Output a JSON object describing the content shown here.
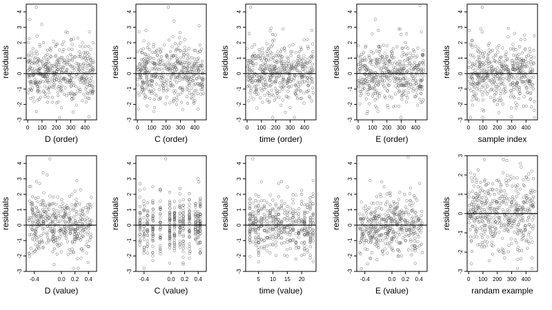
{
  "figure": {
    "rows": 2,
    "cols": 5,
    "background": "#ffffff",
    "point_color": "#555555",
    "marker": "open-circle",
    "reference_line_y": 0
  },
  "chart_data": [
    {
      "type": "scatter",
      "xlabel": "D (order)",
      "ylabel": "residuals",
      "xlim": [
        -10,
        480
      ],
      "ylim": [
        -3,
        4.5
      ],
      "xticks": [
        "0",
        "100",
        "200",
        "300",
        "400"
      ],
      "xtick_values": [
        0,
        100,
        200,
        300,
        400
      ],
      "yticks": [
        "-3",
        "-2",
        "-1",
        "0",
        "1",
        "2",
        "3",
        "4"
      ],
      "ytick_values": [
        -3,
        -2,
        -1,
        0,
        1,
        2,
        3,
        4
      ],
      "x_kind": "index",
      "n": 460,
      "points": [
        [
          16,
          3.5
        ],
        [
          60,
          4.3
        ],
        [
          265,
          2.7
        ],
        [
          350,
          2.3
        ],
        [
          430,
          2.7
        ],
        [
          455,
          2.0
        ],
        [
          428,
          -2.8
        ],
        [
          200,
          -1.9
        ],
        [
          45,
          -1.8
        ],
        [
          320,
          -1.6
        ],
        [
          110,
          2.0
        ],
        [
          180,
          2.1
        ]
      ]
    },
    {
      "type": "scatter",
      "xlabel": "C (order)",
      "ylabel": "residuals",
      "xlim": [
        -10,
        480
      ],
      "ylim": [
        -3,
        4.5
      ],
      "xticks": [
        "0",
        "100",
        "200",
        "300",
        "400"
      ],
      "xtick_values": [
        0,
        100,
        200,
        300,
        400
      ],
      "yticks": [
        "-3",
        "-2",
        "-1",
        "0",
        "1",
        "2",
        "3",
        "4"
      ],
      "ytick_values": [
        -3,
        -2,
        -1,
        0,
        1,
        2,
        3,
        4
      ],
      "x_kind": "index",
      "n": 460,
      "points": [
        [
          215,
          4.3
        ],
        [
          255,
          3.4
        ],
        [
          60,
          2.8
        ],
        [
          430,
          3.1
        ],
        [
          8,
          -2.3
        ],
        [
          120,
          -2.2
        ],
        [
          420,
          -1.3
        ],
        [
          300,
          2.0
        ],
        [
          330,
          2.2
        ]
      ]
    },
    {
      "type": "scatter",
      "xlabel": "time (order)",
      "ylabel": "residuals",
      "xlim": [
        -10,
        480
      ],
      "ylim": [
        -3,
        4.5
      ],
      "xticks": [
        "0",
        "100",
        "200",
        "300",
        "400"
      ],
      "xtick_values": [
        0,
        100,
        200,
        300,
        400
      ],
      "yticks": [
        "-3",
        "-2",
        "-1",
        "0",
        "1",
        "2",
        "3",
        "4"
      ],
      "ytick_values": [
        -3,
        -2,
        -1,
        0,
        1,
        2,
        3,
        4
      ],
      "x_kind": "index",
      "n": 460,
      "points": [
        [
          25,
          4.3
        ],
        [
          15,
          2.6
        ],
        [
          250,
          2.9
        ],
        [
          450,
          2.8
        ],
        [
          300,
          -2.2
        ],
        [
          140,
          -1.7
        ],
        [
          380,
          -1.6
        ]
      ]
    },
    {
      "type": "scatter",
      "xlabel": "E (order)",
      "ylabel": "residuals",
      "xlim": [
        -10,
        480
      ],
      "ylim": [
        -3,
        4.5
      ],
      "xticks": [
        "0",
        "100",
        "200",
        "300",
        "400"
      ],
      "xtick_values": [
        0,
        100,
        200,
        300,
        400
      ],
      "yticks": [
        "-3",
        "-2",
        "-1",
        "0",
        "1",
        "2",
        "3",
        "4"
      ],
      "ytick_values": [
        -3,
        -2,
        -1,
        0,
        1,
        2,
        3,
        4
      ],
      "x_kind": "index",
      "n": 460,
      "points": [
        [
          430,
          4.4
        ],
        [
          120,
          3.5
        ],
        [
          140,
          2.8
        ],
        [
          440,
          2.7
        ],
        [
          60,
          -2.6
        ],
        [
          260,
          -2.1
        ],
        [
          400,
          -1.5
        ]
      ]
    },
    {
      "type": "scatter",
      "xlabel": "sample index",
      "ylabel": "residuals",
      "xlim": [
        -10,
        480
      ],
      "ylim": [
        -3,
        4.5
      ],
      "xticks": [
        "0",
        "100",
        "200",
        "300",
        "400"
      ],
      "xtick_values": [
        0,
        100,
        200,
        300,
        400
      ],
      "yticks": [
        "-3",
        "-2",
        "-1",
        "0",
        "1",
        "2",
        "3",
        "4"
      ],
      "ytick_values": [
        -3,
        -2,
        -1,
        0,
        1,
        2,
        3,
        4
      ],
      "x_kind": "index",
      "n": 460,
      "points": [
        [
          95,
          4.3
        ],
        [
          5,
          2.8
        ],
        [
          320,
          2.6
        ],
        [
          390,
          2.5
        ],
        [
          300,
          -2.8
        ],
        [
          200,
          -2.0
        ],
        [
          100,
          -1.7
        ]
      ]
    },
    {
      "type": "scatter",
      "xlabel": "D (value)",
      "ylabel": "residuals",
      "xlim": [
        -0.52,
        0.52
      ],
      "ylim": [
        -3,
        4.5
      ],
      "xticks": [
        "-0.4",
        "0.0",
        "0.2",
        "0.4"
      ],
      "xtick_values": [
        -0.4,
        0.0,
        0.2,
        0.4
      ],
      "yticks": [
        "-3",
        "-2",
        "-1",
        "0",
        "1",
        "2",
        "3",
        "4"
      ],
      "ytick_values": [
        -3,
        -2,
        -1,
        0,
        1,
        2,
        3,
        4
      ],
      "x_kind": "continuous",
      "n": 420,
      "points": [
        [
          -0.17,
          4.3
        ],
        [
          -0.27,
          3.4
        ],
        [
          -0.32,
          2.7
        ],
        [
          0.2,
          2.2
        ],
        [
          -0.42,
          -1.8
        ],
        [
          0.25,
          -2.8
        ],
        [
          0.1,
          -1.9
        ]
      ]
    },
    {
      "type": "scatter",
      "xlabel": "C (value)",
      "ylabel": "residuals",
      "xlim": [
        -0.52,
        0.52
      ],
      "ylim": [
        -3,
        4.5
      ],
      "xticks": [
        "-0.4",
        "0.0",
        "0.2",
        "0.4"
      ],
      "xtick_values": [
        -0.4,
        0.0,
        0.2,
        0.4
      ],
      "yticks": [
        "-3",
        "-2",
        "-1",
        "0",
        "1",
        "2",
        "3",
        "4"
      ],
      "ytick_values": [
        -3,
        -2,
        -1,
        0,
        1,
        2,
        3,
        4
      ],
      "x_kind": "discrete",
      "n": 420,
      "x_levels": [
        -0.46,
        -0.4,
        -0.35,
        -0.27,
        -0.16,
        -0.02,
        0.05,
        0.13,
        0.18,
        0.27,
        0.36,
        0.4,
        0.43
      ],
      "points": [
        [
          -0.08,
          4.3
        ],
        [
          0.4,
          3.0
        ],
        [
          -0.4,
          -2.8
        ],
        [
          -0.27,
          2.5
        ],
        [
          0.41,
          2.8
        ],
        [
          -0.27,
          -2.3
        ],
        [
          0.28,
          -1.7
        ]
      ]
    },
    {
      "type": "scatter",
      "xlabel": "time (value)",
      "ylabel": "residuals",
      "xlim": [
        0.5,
        25
      ],
      "ylim": [
        -3,
        4.5
      ],
      "xticks": [
        "5",
        "10",
        "15",
        "20"
      ],
      "xtick_values": [
        5,
        10,
        15,
        20
      ],
      "yticks": [
        "-3",
        "-2",
        "-1",
        "0",
        "1",
        "2",
        "3",
        "4"
      ],
      "ytick_values": [
        -3,
        -2,
        -1,
        0,
        1,
        2,
        3,
        4
      ],
      "x_kind": "discrete",
      "n": 440,
      "x_levels": [
        2,
        3,
        4,
        5,
        6,
        7,
        8,
        9,
        10,
        11,
        12,
        13,
        14,
        15,
        16,
        17,
        18,
        19,
        20,
        21,
        22,
        23,
        24
      ],
      "points": [
        [
          3,
          4.3
        ],
        [
          12,
          2.7
        ],
        [
          24,
          2.9
        ],
        [
          20,
          2.0
        ],
        [
          18,
          -2.2
        ],
        [
          9,
          -1.8
        ],
        [
          22,
          -1.6
        ]
      ]
    },
    {
      "type": "scatter",
      "xlabel": "E (value)",
      "ylabel": "residuals",
      "xlim": [
        -0.52,
        0.52
      ],
      "ylim": [
        -3,
        4.5
      ],
      "xticks": [
        "-0.4",
        "0.0",
        "0.2",
        "0.4"
      ],
      "xtick_values": [
        -0.4,
        0.0,
        0.2,
        0.4
      ],
      "yticks": [
        "-3",
        "-2",
        "-1",
        "0",
        "1",
        "2",
        "3",
        "4"
      ],
      "ytick_values": [
        -3,
        -2,
        -1,
        0,
        1,
        2,
        3,
        4
      ],
      "x_kind": "continuous",
      "n": 420,
      "points": [
        [
          0.24,
          4.4
        ],
        [
          -0.15,
          2.8
        ],
        [
          0.41,
          2.7
        ],
        [
          -0.17,
          2.0
        ],
        [
          -0.36,
          -2.5
        ],
        [
          0.1,
          -2.0
        ],
        [
          0.3,
          -1.6
        ]
      ]
    },
    {
      "type": "scatter",
      "xlabel": "randam example",
      "ylabel": "residuals",
      "xlim": [
        -10,
        480
      ],
      "ylim": [
        -3,
        3
      ],
      "xticks": [
        "0",
        "100",
        "200",
        "300",
        "400"
      ],
      "xtick_values": [
        0,
        100,
        200,
        300,
        400
      ],
      "yticks": [
        "-3",
        "-2",
        "-1",
        "0",
        "1",
        "2",
        "3"
      ],
      "ytick_values": [
        -3,
        -2,
        -1,
        0,
        1,
        2,
        3
      ],
      "x_kind": "index",
      "n": 460,
      "points": [
        [
          110,
          2.8
        ],
        [
          15,
          2.1
        ],
        [
          360,
          2.6
        ],
        [
          440,
          2.2
        ],
        [
          20,
          -2.6
        ],
        [
          250,
          -2.3
        ],
        [
          410,
          -1.8
        ]
      ]
    }
  ]
}
